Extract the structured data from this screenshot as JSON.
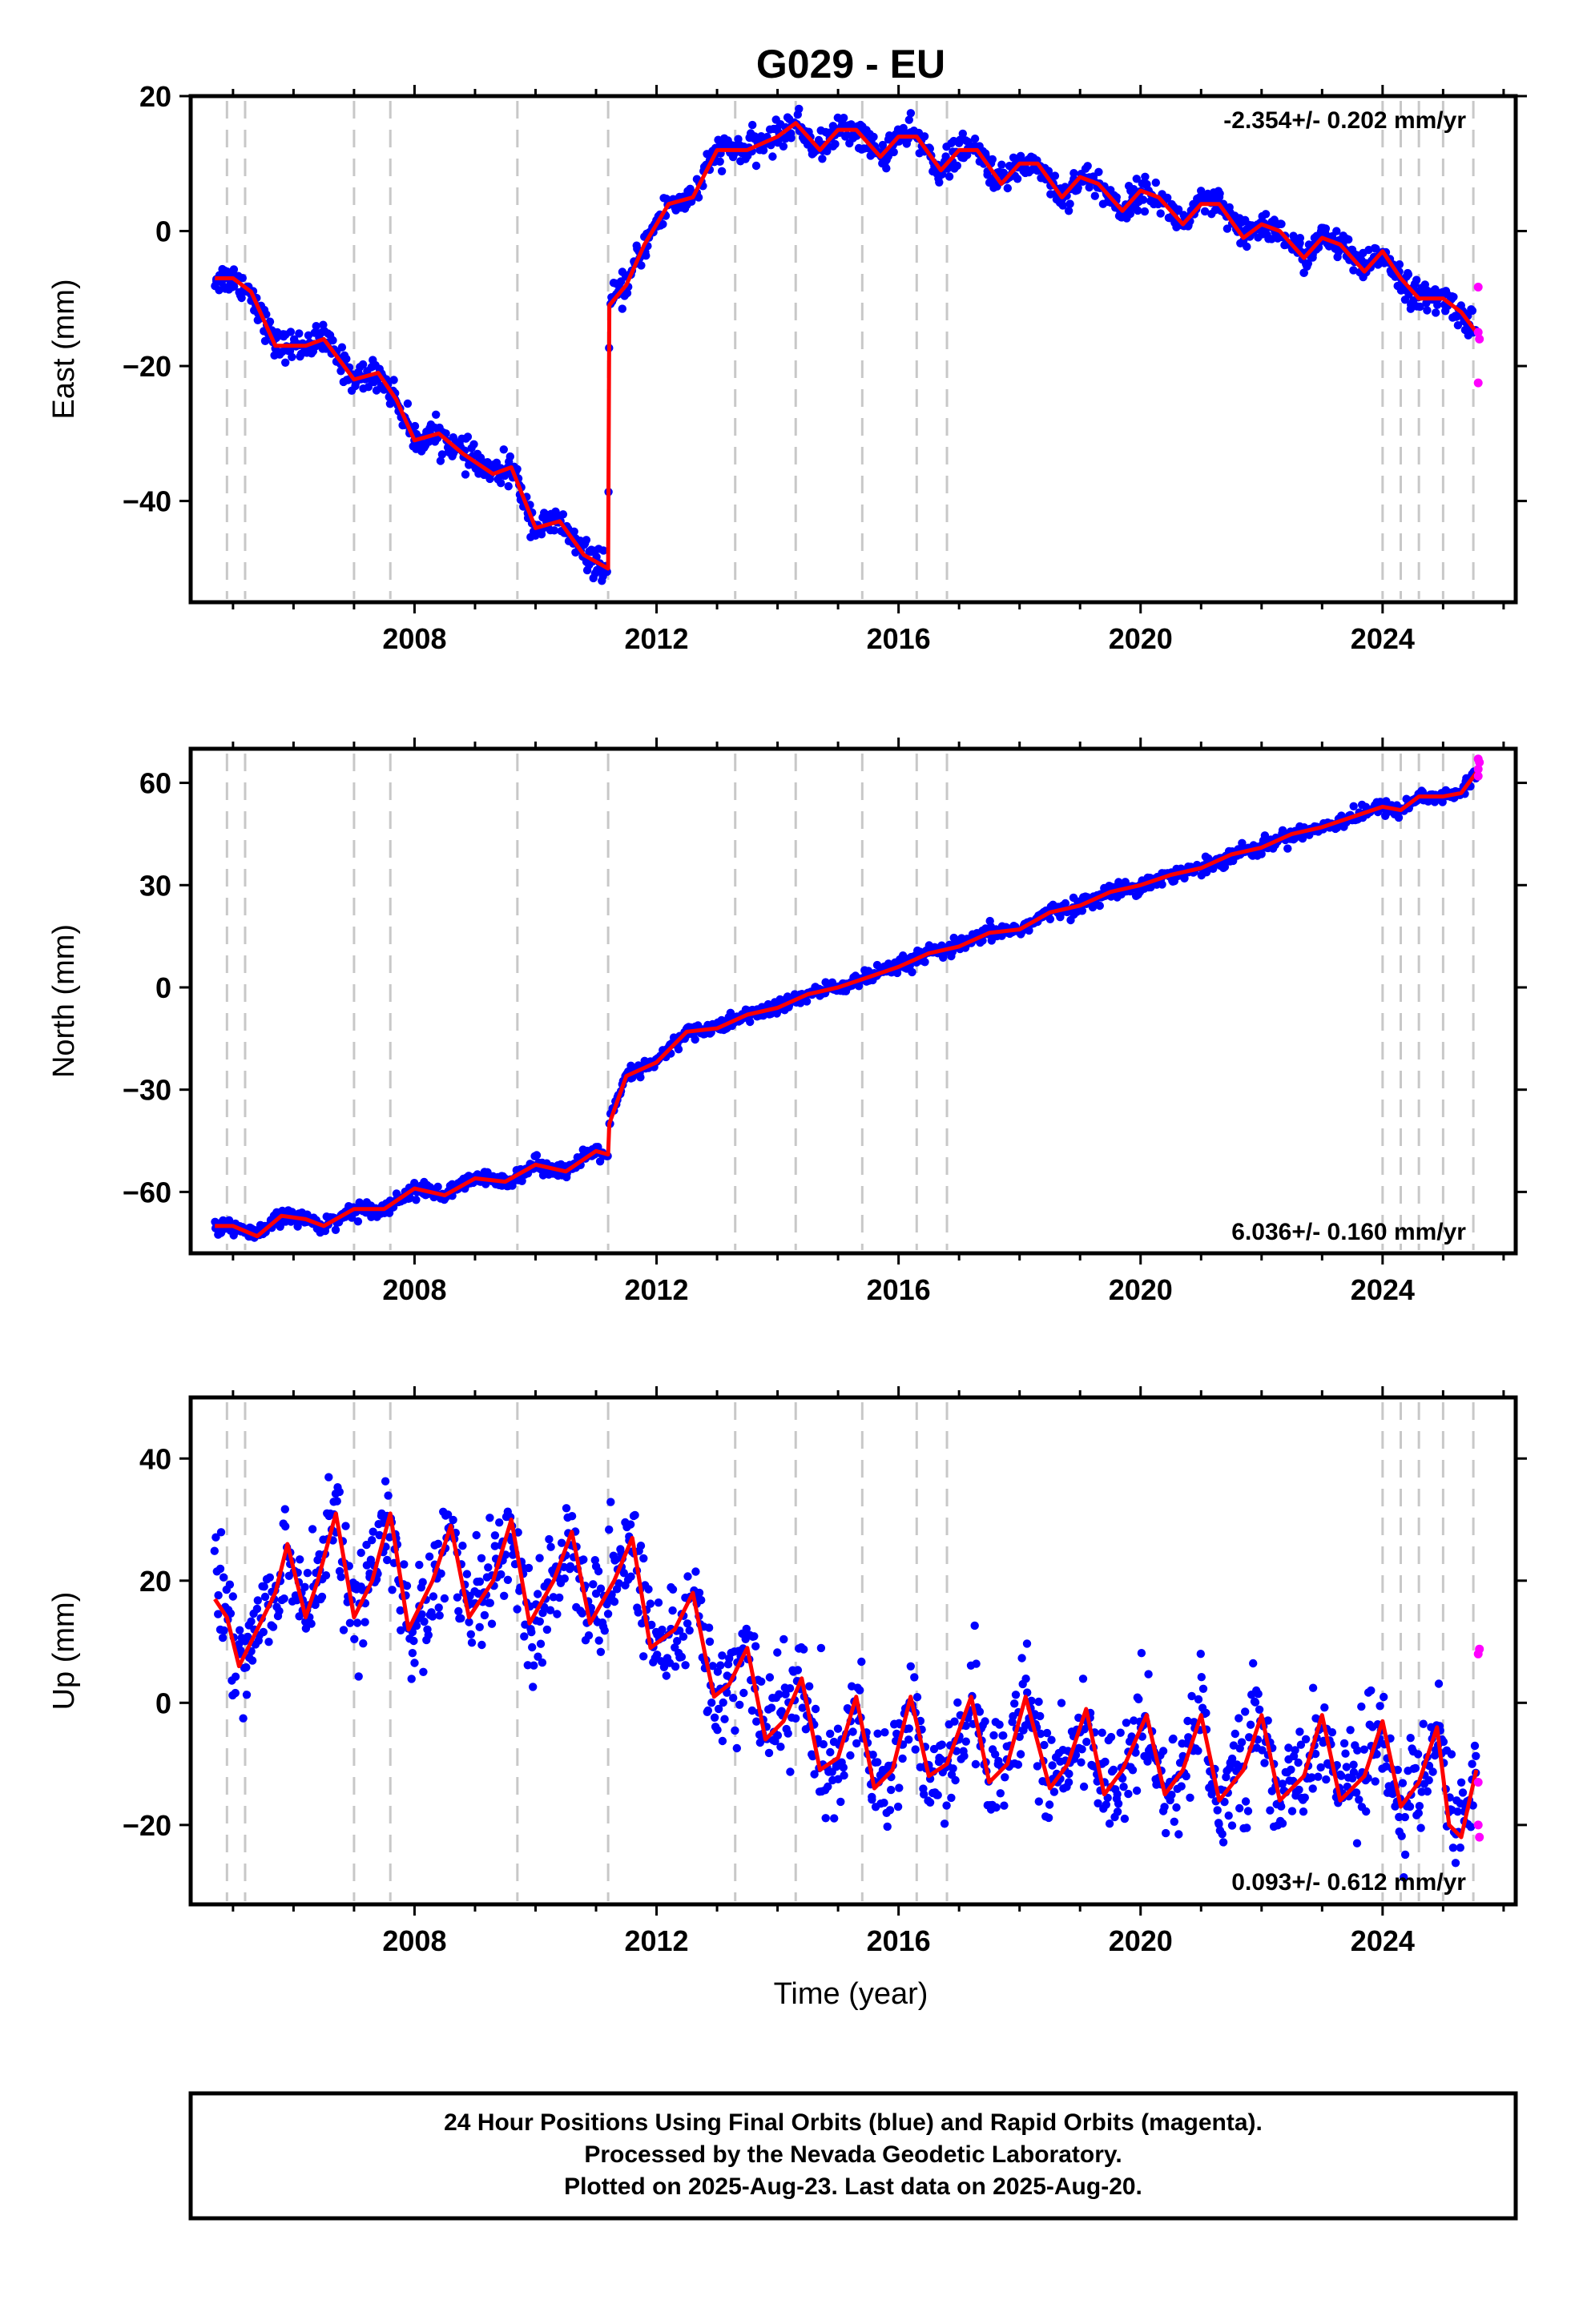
{
  "title": "G029 - EU",
  "xlabel": "Time (year)",
  "footer": [
    "24 Hour Positions Using Final Orbits (blue) and Rapid Orbits (magenta).",
    "Processed by the Nevada Geodetic Laboratory.",
    "Plotted on 2025-Aug-23. Last data on 2025-Aug-20."
  ],
  "colors": {
    "final": "#0000ff",
    "rapid": "#ff00ff",
    "model": "#ff0000",
    "event": "#c8c8c8"
  },
  "chart_data": [
    {
      "type": "scatter",
      "ylabel": "East (mm)",
      "rate_label": "-2.354+/- 0.202 mm/yr",
      "xlim": [
        2004.3,
        2026.2
      ],
      "ylim": [
        -55,
        20
      ],
      "x_ticks": [
        "2008",
        "2012",
        "2016",
        "2020",
        "2024"
      ],
      "y_ticks": [
        "20",
        "0",
        "−20",
        "−40"
      ],
      "y_tick_values": [
        20,
        0,
        -20,
        -40
      ],
      "event_lines": [
        2004.9,
        2005.2,
        2007.0,
        2007.6,
        2009.7,
        2011.2,
        2013.3,
        2014.3,
        2015.4,
        2016.3,
        2016.8,
        2024.0,
        2024.3,
        2024.6,
        2025.0,
        2025.5
      ],
      "series": [
        {
          "values": [
            [
              2004.7,
              -7
            ],
            [
              2005.0,
              -7
            ],
            [
              2005.3,
              -9
            ],
            [
              2005.7,
              -17
            ],
            [
              2006.2,
              -17
            ],
            [
              2006.5,
              -16
            ],
            [
              2007.0,
              -22
            ],
            [
              2007.4,
              -21
            ],
            [
              2007.7,
              -25
            ],
            [
              2008.0,
              -31
            ],
            [
              2008.4,
              -30
            ],
            [
              2008.8,
              -33
            ],
            [
              2009.3,
              -36
            ],
            [
              2009.6,
              -35
            ],
            [
              2010.0,
              -44
            ],
            [
              2010.4,
              -43
            ],
            [
              2010.8,
              -48
            ],
            [
              2011.2,
              -50
            ],
            [
              2011.22,
              -11
            ],
            [
              2011.5,
              -8
            ],
            [
              2011.8,
              -2
            ],
            [
              2012.2,
              4
            ],
            [
              2012.6,
              5
            ],
            [
              2013.0,
              12
            ],
            [
              2013.5,
              12
            ],
            [
              2014.0,
              14
            ],
            [
              2014.3,
              16
            ],
            [
              2014.7,
              12
            ],
            [
              2015.0,
              15
            ],
            [
              2015.3,
              15
            ],
            [
              2015.7,
              11
            ],
            [
              2016.0,
              14
            ],
            [
              2016.3,
              14
            ],
            [
              2016.7,
              9
            ],
            [
              2017.0,
              12
            ],
            [
              2017.3,
              12
            ],
            [
              2017.7,
              7
            ],
            [
              2018.0,
              10
            ],
            [
              2018.3,
              10
            ],
            [
              2018.7,
              5
            ],
            [
              2019.0,
              8
            ],
            [
              2019.3,
              7
            ],
            [
              2019.7,
              3
            ],
            [
              2020.0,
              6
            ],
            [
              2020.3,
              5
            ],
            [
              2020.7,
              1
            ],
            [
              2021.0,
              4
            ],
            [
              2021.3,
              4
            ],
            [
              2021.7,
              -1
            ],
            [
              2022.0,
              1
            ],
            [
              2022.3,
              0
            ],
            [
              2022.7,
              -4
            ],
            [
              2023.0,
              -1
            ],
            [
              2023.3,
              -2
            ],
            [
              2023.7,
              -6
            ],
            [
              2024.0,
              -3
            ],
            [
              2024.3,
              -7
            ],
            [
              2024.6,
              -10
            ],
            [
              2025.0,
              -10
            ],
            [
              2025.3,
              -12
            ],
            [
              2025.55,
              -15
            ]
          ]
        }
      ],
      "rapid_points": [
        [
          2025.58,
          -8.3
        ],
        [
          2025.58,
          -15
        ],
        [
          2025.6,
          -16
        ],
        [
          2025.58,
          -22.5
        ]
      ]
    },
    {
      "type": "scatter",
      "ylabel": "North (mm)",
      "rate_label": "6.036+/- 0.160 mm/yr",
      "xlim": [
        2004.3,
        2026.2
      ],
      "ylim": [
        -78,
        70
      ],
      "x_ticks": [
        "2008",
        "2012",
        "2016",
        "2020",
        "2024"
      ],
      "y_ticks": [
        "60",
        "30",
        "0",
        "−30",
        "−60"
      ],
      "y_tick_values": [
        60,
        30,
        0,
        -30,
        -60
      ],
      "event_lines": [
        2004.9,
        2005.2,
        2007.0,
        2007.6,
        2009.7,
        2011.2,
        2013.3,
        2014.3,
        2015.4,
        2016.3,
        2016.8,
        2024.0,
        2024.3,
        2024.6,
        2025.0,
        2025.5
      ],
      "series": [
        {
          "values": [
            [
              2004.7,
              -70
            ],
            [
              2005.0,
              -70
            ],
            [
              2005.4,
              -73
            ],
            [
              2005.8,
              -67
            ],
            [
              2006.2,
              -68
            ],
            [
              2006.5,
              -70
            ],
            [
              2007.0,
              -65
            ],
            [
              2007.5,
              -65
            ],
            [
              2008.0,
              -59
            ],
            [
              2008.5,
              -61
            ],
            [
              2009.0,
              -56
            ],
            [
              2009.5,
              -57
            ],
            [
              2010.0,
              -52
            ],
            [
              2010.5,
              -54
            ],
            [
              2011.0,
              -48
            ],
            [
              2011.2,
              -49
            ],
            [
              2011.22,
              -40
            ],
            [
              2011.5,
              -26
            ],
            [
              2012.0,
              -22
            ],
            [
              2012.5,
              -13
            ],
            [
              2013.0,
              -12
            ],
            [
              2013.5,
              -8
            ],
            [
              2014.0,
              -6
            ],
            [
              2014.5,
              -2
            ],
            [
              2015.0,
              0
            ],
            [
              2015.5,
              3
            ],
            [
              2016.0,
              6
            ],
            [
              2016.5,
              10
            ],
            [
              2017.0,
              12
            ],
            [
              2017.5,
              16
            ],
            [
              2018.0,
              17
            ],
            [
              2018.5,
              22
            ],
            [
              2019.0,
              24
            ],
            [
              2019.5,
              28
            ],
            [
              2020.0,
              30
            ],
            [
              2020.5,
              33
            ],
            [
              2021.0,
              35
            ],
            [
              2021.5,
              39
            ],
            [
              2022.0,
              41
            ],
            [
              2022.5,
              45
            ],
            [
              2023.0,
              47
            ],
            [
              2023.5,
              50
            ],
            [
              2024.0,
              53
            ],
            [
              2024.3,
              52
            ],
            [
              2024.6,
              56
            ],
            [
              2025.0,
              56
            ],
            [
              2025.3,
              57
            ],
            [
              2025.55,
              63
            ]
          ]
        }
      ],
      "rapid_points": [
        [
          2025.58,
          62
        ],
        [
          2025.58,
          64
        ],
        [
          2025.6,
          66
        ],
        [
          2025.58,
          67
        ]
      ]
    },
    {
      "type": "scatter",
      "ylabel": "Up (mm)",
      "rate_label": "0.093+/- 0.612 mm/yr",
      "xlim": [
        2004.3,
        2026.2
      ],
      "ylim": [
        -33,
        50
      ],
      "x_ticks": [
        "2008",
        "2012",
        "2016",
        "2020",
        "2024"
      ],
      "y_ticks": [
        "40",
        "20",
        "0",
        "−20"
      ],
      "y_tick_values": [
        40,
        20,
        0,
        -20
      ],
      "event_lines": [
        2004.9,
        2005.2,
        2007.0,
        2007.6,
        2009.7,
        2011.2,
        2013.3,
        2014.3,
        2015.4,
        2016.3,
        2016.8,
        2024.0,
        2024.3,
        2024.6,
        2025.0,
        2025.5
      ],
      "series": [
        {
          "values": [
            [
              2004.7,
              17
            ],
            [
              2004.9,
              14
            ],
            [
              2005.1,
              6
            ],
            [
              2005.4,
              12
            ],
            [
              2005.7,
              18
            ],
            [
              2005.9,
              26
            ],
            [
              2006.2,
              14
            ],
            [
              2006.4,
              20
            ],
            [
              2006.7,
              31
            ],
            [
              2007.0,
              14
            ],
            [
              2007.3,
              20
            ],
            [
              2007.6,
              31
            ],
            [
              2007.9,
              12
            ],
            [
              2008.3,
              20
            ],
            [
              2008.6,
              29
            ],
            [
              2008.9,
              14
            ],
            [
              2009.3,
              20
            ],
            [
              2009.6,
              30
            ],
            [
              2009.9,
              13
            ],
            [
              2010.3,
              20
            ],
            [
              2010.6,
              28
            ],
            [
              2010.9,
              13
            ],
            [
              2011.3,
              20
            ],
            [
              2011.6,
              27
            ],
            [
              2011.9,
              9
            ],
            [
              2012.3,
              12
            ],
            [
              2012.6,
              18
            ],
            [
              2012.8,
              8
            ],
            [
              2012.95,
              1
            ],
            [
              2013.2,
              3
            ],
            [
              2013.5,
              9
            ],
            [
              2013.8,
              -6
            ],
            [
              2014.1,
              -3
            ],
            [
              2014.4,
              4
            ],
            [
              2014.7,
              -11
            ],
            [
              2015.0,
              -9
            ],
            [
              2015.3,
              1
            ],
            [
              2015.6,
              -14
            ],
            [
              2015.9,
              -11
            ],
            [
              2016.2,
              1
            ],
            [
              2016.5,
              -12
            ],
            [
              2016.8,
              -10
            ],
            [
              2017.2,
              1
            ],
            [
              2017.5,
              -13
            ],
            [
              2017.8,
              -10
            ],
            [
              2018.1,
              1
            ],
            [
              2018.5,
              -14
            ],
            [
              2018.8,
              -10
            ],
            [
              2019.1,
              -1
            ],
            [
              2019.4,
              -15
            ],
            [
              2019.7,
              -11
            ],
            [
              2020.1,
              -2
            ],
            [
              2020.4,
              -15
            ],
            [
              2020.7,
              -11
            ],
            [
              2021.0,
              -2
            ],
            [
              2021.3,
              -16
            ],
            [
              2021.7,
              -11
            ],
            [
              2022.0,
              -2
            ],
            [
              2022.3,
              -16
            ],
            [
              2022.7,
              -12
            ],
            [
              2023.0,
              -2
            ],
            [
              2023.3,
              -16
            ],
            [
              2023.7,
              -12
            ],
            [
              2024.0,
              -3
            ],
            [
              2024.3,
              -17
            ],
            [
              2024.6,
              -13
            ],
            [
              2024.9,
              -4
            ],
            [
              2025.1,
              -20
            ],
            [
              2025.3,
              -22
            ],
            [
              2025.55,
              -11
            ]
          ]
        }
      ],
      "rapid_points": [
        [
          2025.58,
          8
        ],
        [
          2025.6,
          8.8
        ],
        [
          2025.58,
          -13
        ],
        [
          2025.58,
          -20
        ],
        [
          2025.6,
          -22
        ]
      ]
    }
  ]
}
